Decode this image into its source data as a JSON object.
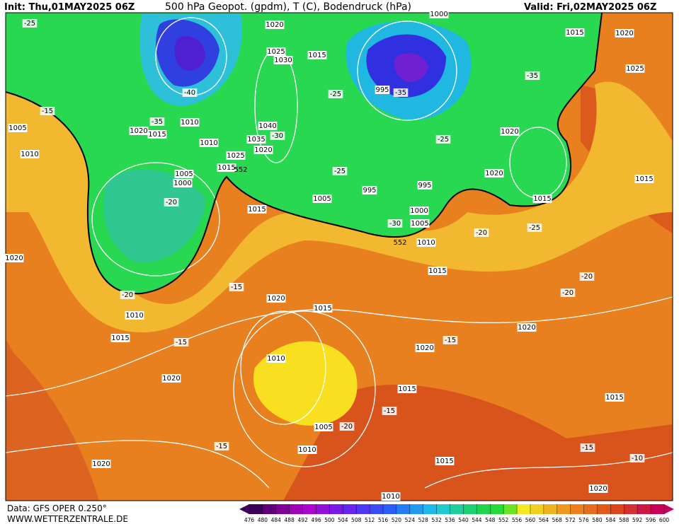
{
  "header": {
    "init": "Init: Thu,01MAY2025 06Z",
    "title": "500 hPa Geopot. (gpdm), T (C), Bodendruck (hPa)",
    "valid": "Valid: Fri,02MAY2025 06Z"
  },
  "footer": {
    "data": "Data: GFS OPER 0.250°",
    "site": "WWW.WETTERZENTRALE.DE"
  },
  "colorbar": [
    476,
    480,
    484,
    488,
    492,
    496,
    500,
    504,
    508,
    512,
    516,
    520,
    524,
    528,
    532,
    536,
    540,
    544,
    548,
    552,
    556,
    560,
    564,
    568,
    572,
    576,
    580,
    584,
    588,
    592,
    596,
    600
  ],
  "geopotential_labels": [
    552,
    552
  ],
  "pressure_labels": [
    1020,
    1025,
    1030,
    1015,
    1040,
    1035,
    1020,
    1025,
    1010,
    1015,
    1005,
    1000,
    1010,
    1020,
    1015,
    1005,
    1010,
    995,
    995,
    995,
    1000,
    1005,
    1010,
    1005,
    1015,
    1020,
    1020,
    1015,
    1020,
    1025,
    1015,
    1015,
    1000,
    1020,
    1020,
    1015,
    1010,
    1015,
    1020,
    1020,
    1010,
    1005,
    1010,
    1015,
    1020,
    1015,
    1020,
    1015,
    1015,
    1020,
    1010
  ],
  "temperature_labels": [
    -25,
    -15,
    -40,
    -35,
    -30,
    -25,
    -35,
    -35,
    -25,
    -25,
    -30,
    -20,
    -25,
    -20,
    -20,
    -15,
    -15,
    -20,
    -20,
    -15,
    -15,
    -20,
    -15,
    -15,
    -10
  ]
}
